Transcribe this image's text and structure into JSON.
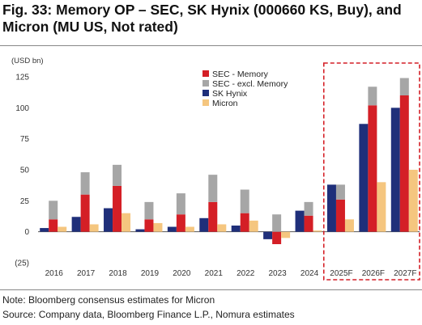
{
  "title": "Fig. 33: Memory OP – SEC, SK Hynix (000660 KS, Buy), and Micron (MU US, Not rated)",
  "note": "Note: Bloomberg consensus estimates for Micron",
  "source": "Source: Company data, Bloomberg Finance L.P., Nomura estimates",
  "colors": {
    "sec_memory": "#d41f26",
    "sec_excl_memory": "#a6a6a6",
    "sk_hynix": "#1f2f7a",
    "micron": "#f5c67f",
    "forecast_box": "#d41f26"
  },
  "chart_data": {
    "type": "bar",
    "unit_label": "(USD bn)",
    "categories": [
      "2016",
      "2017",
      "2018",
      "2019",
      "2020",
      "2021",
      "2022",
      "2023",
      "2024",
      "2025F",
      "2026F",
      "2027F"
    ],
    "ylim": [
      -25,
      125
    ],
    "yticks": [
      -25,
      0,
      25,
      50,
      75,
      100,
      125
    ],
    "ytick_labels": [
      "(25)",
      "0",
      "25",
      "50",
      "75",
      "100",
      "125"
    ],
    "grid": false,
    "legend_position": "top-right",
    "highlight_categories": [
      "2025F",
      "2026F",
      "2027F"
    ],
    "series": [
      {
        "name": "SK Hynix",
        "key": "sk_hynix",
        "values": [
          3,
          12,
          19,
          2,
          4,
          11,
          5,
          -6,
          17,
          38,
          87,
          100
        ]
      },
      {
        "name": "SEC - Memory",
        "key": "sec_memory",
        "stack": "sec",
        "values": [
          10,
          30,
          37,
          10,
          14,
          24,
          15,
          -10,
          13,
          26,
          102,
          110
        ]
      },
      {
        "name": "SEC - excl. Memory",
        "key": "sec_excl_memory",
        "stack": "sec",
        "values": [
          15,
          18,
          17,
          14,
          17,
          22,
          19,
          14,
          11,
          12,
          15,
          14
        ]
      },
      {
        "name": "Micron",
        "key": "micron",
        "values": [
          4,
          6,
          15,
          7,
          4,
          6,
          9,
          -5,
          1,
          10,
          40,
          50
        ]
      }
    ],
    "legend": [
      "SEC - Memory",
      "SEC - excl. Memory",
      "SK Hynix",
      "Micron"
    ]
  }
}
